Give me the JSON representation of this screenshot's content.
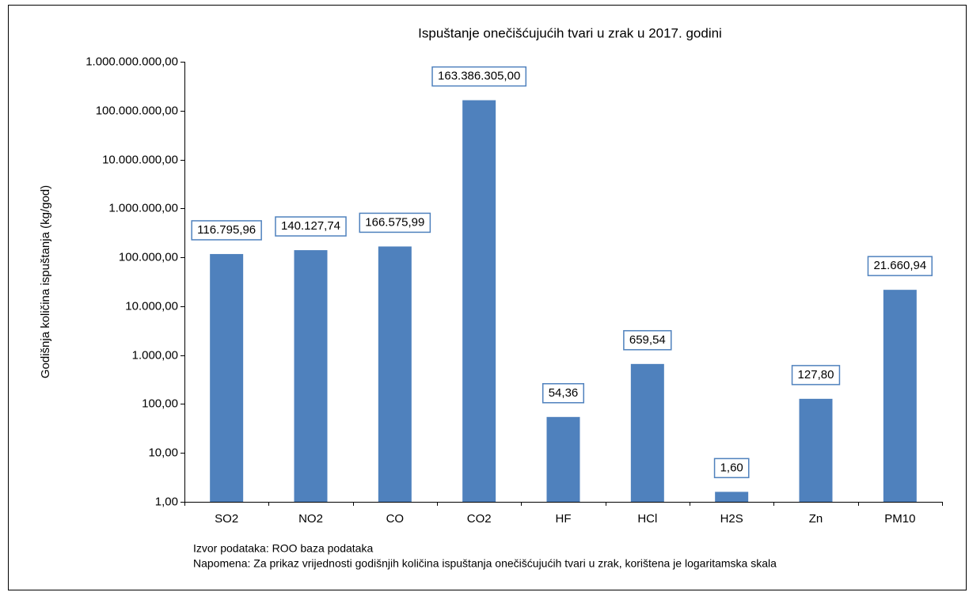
{
  "chart_data": {
    "type": "bar",
    "title": "Ispuštanje onečišćujućih tvari u zrak u 2017. godini",
    "y_label": "Godišnja količina ispuštanja (kg/god)",
    "categories": [
      "SO2",
      "NO2",
      "CO",
      "CO2",
      "HF",
      "HCl",
      "H2S",
      "Zn",
      "PM10"
    ],
    "values": [
      116795.96,
      140127.74,
      166575.99,
      163386305.0,
      54.36,
      659.54,
      1.6,
      127.8,
      21660.94
    ],
    "value_labels": [
      "116.795,96",
      "140.127,74",
      "166.575,99",
      "163.386.305,00",
      "54,36",
      "659,54",
      "1,60",
      "127,80",
      "21.660,94"
    ],
    "color": "#4f81bd",
    "log_scale": true,
    "ylim": [
      1,
      1000000000
    ],
    "yticks": [
      {
        "value": 1,
        "label": "1,00"
      },
      {
        "value": 10,
        "label": "10,00"
      },
      {
        "value": 100,
        "label": "100,00"
      },
      {
        "value": 1000,
        "label": "1.000,00"
      },
      {
        "value": 10000,
        "label": "10.000,00"
      },
      {
        "value": 100000,
        "label": "100.000,00"
      },
      {
        "value": 1000000,
        "label": "1.000.000,00"
      },
      {
        "value": 10000000,
        "label": "10.000.000,00"
      },
      {
        "value": 100000000,
        "label": "100.000.000,00"
      },
      {
        "value": 1000000000,
        "label": "1.000.000.000,00"
      }
    ],
    "grid": false,
    "notes": [
      "Izvor podataka: ROO baza podataka",
      "Napomena: Za prikaz vrijednosti godišnjih količina ispuštanja onečišćujućih tvari u zrak, korištena je logaritamska skala"
    ]
  }
}
